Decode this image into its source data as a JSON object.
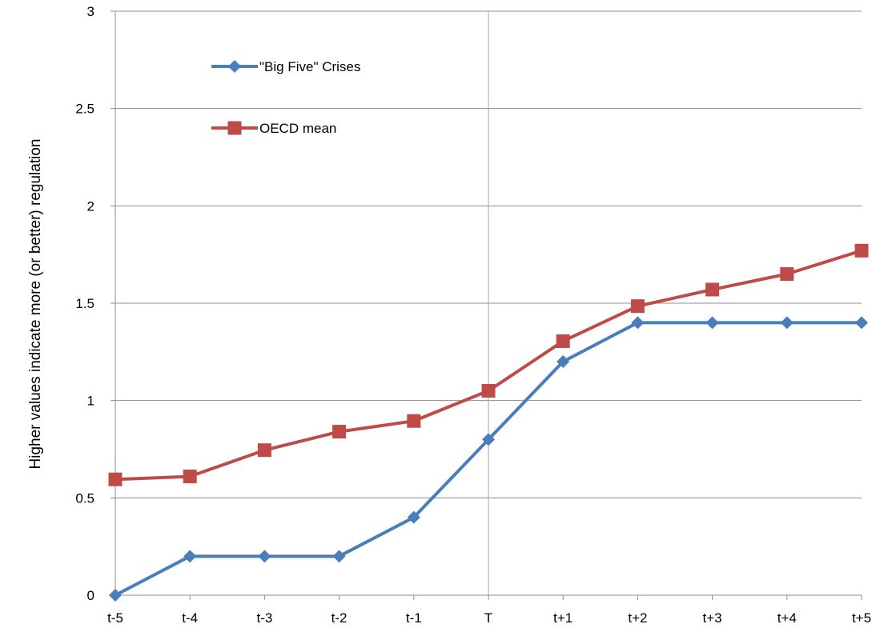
{
  "chart_data": {
    "type": "line",
    "categories": [
      "t-5",
      "t-4",
      "t-3",
      "t-2",
      "t-1",
      "T",
      "t+1",
      "t+2",
      "t+3",
      "t+4",
      "t+5"
    ],
    "series": [
      {
        "name": "\"Big Five\" Crises",
        "color": "#4a7ebb",
        "marker": "diamond",
        "values": [
          0,
          0.2,
          0.2,
          0.2,
          0.4,
          0.8,
          1.2,
          1.4,
          1.4,
          1.4,
          1.4
        ]
      },
      {
        "name": "OECD mean",
        "color": "#be4b48",
        "marker": "square",
        "values": [
          0.595,
          0.61,
          0.745,
          0.84,
          0.895,
          1.05,
          1.305,
          1.485,
          1.57,
          1.65,
          1.77
        ]
      }
    ],
    "yticks": [
      "0",
      "0.5",
      "1",
      "1.5",
      "2",
      "2.5",
      "3"
    ],
    "ylim": [
      0,
      3
    ],
    "ylabel": "Higher values indicate more (or better) regulation",
    "xlabel": "",
    "title": "",
    "grid": "horizontal",
    "highlight_category": "T",
    "legend_position": "top-left-inside"
  }
}
